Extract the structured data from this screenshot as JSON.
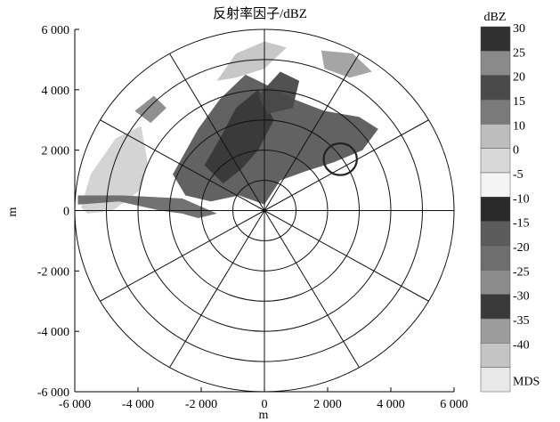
{
  "chart_data": {
    "type": "radar-ppi",
    "title": "反射率因子/dBZ",
    "xlabel": "m",
    "ylabel": "m",
    "xlim": [
      -6000,
      6000
    ],
    "ylim": [
      -6000,
      6000
    ],
    "xticks": [
      -6000,
      -4000,
      -2000,
      0,
      2000,
      4000,
      6000
    ],
    "yticks": [
      -6000,
      -4000,
      -2000,
      0,
      2000,
      4000,
      6000
    ],
    "xtick_labels": [
      "-6 000",
      "-4 000",
      "-2 000",
      "0",
      "2 000",
      "4 000",
      "6 000"
    ],
    "ytick_labels": [
      "-6 000",
      "-4 000",
      "-2 000",
      "0",
      "2 000",
      "4 000",
      "6 000"
    ],
    "range_rings_m": [
      1000,
      2000,
      3000,
      4000,
      5000,
      6000
    ],
    "azimuth_spokes_deg": [
      0,
      30,
      60,
      90,
      120,
      150,
      180,
      210,
      240,
      270,
      300,
      330
    ],
    "grid": true,
    "colorbar": {
      "title": "dBZ",
      "levels": [
        30,
        25,
        20,
        15,
        10,
        0,
        -5,
        -10,
        -15,
        -20,
        -25,
        -30,
        -35,
        -40,
        "MDS"
      ],
      "labels": [
        "30",
        "25",
        "20",
        "15",
        "10",
        "0",
        "-5",
        "-10",
        "-15",
        "-20",
        "-25",
        "-30",
        "-35",
        "-40",
        "MDS"
      ],
      "colors": [
        "#303030",
        "#8a8a8a",
        "#4a4a4a",
        "#7a7a7a",
        "#bdbdbd",
        "#d8d8d8",
        "#f3f3f3",
        "#2a2a2a",
        "#5c5c5c",
        "#6e6e6e",
        "#8c8c8c",
        "#3a3a3a",
        "#9c9c9c",
        "#c4c4c4",
        "#e8e8e8"
      ]
    },
    "annotation_circle": {
      "x": 2400,
      "y": 1700,
      "r": 1050
    },
    "echo_regions": [
      {
        "shade": "#d2d2d2",
        "points": [
          [
            -5800,
            100
          ],
          [
            -5500,
            1200
          ],
          [
            -4700,
            2400
          ],
          [
            -3900,
            2800
          ],
          [
            -3700,
            1600
          ],
          [
            -3900,
            700
          ],
          [
            -4800,
            0
          ],
          [
            -5600,
            -100
          ]
        ]
      },
      {
        "shade": "#6a6a6a",
        "points": [
          [
            -5900,
            200
          ],
          [
            -4600,
            300
          ],
          [
            -3300,
            0
          ],
          [
            -2600,
            -100
          ],
          [
            -2100,
            -250
          ],
          [
            -1500,
            -100
          ],
          [
            -2600,
            400
          ],
          [
            -4500,
            500
          ],
          [
            -5900,
            500
          ]
        ]
      },
      {
        "shade": "#5a5a5a",
        "points": [
          [
            -2900,
            1200
          ],
          [
            -2100,
            2700
          ],
          [
            -1400,
            3700
          ],
          [
            -600,
            4500
          ],
          [
            0,
            4200
          ],
          [
            900,
            3700
          ],
          [
            1900,
            3300
          ],
          [
            3000,
            3100
          ],
          [
            3600,
            2700
          ],
          [
            3100,
            2000
          ],
          [
            2200,
            1600
          ],
          [
            1300,
            1300
          ],
          [
            500,
            1000
          ],
          [
            0,
            200
          ],
          [
            -800,
            500
          ],
          [
            -1700,
            300
          ],
          [
            -2500,
            500
          ]
        ]
      },
      {
        "shade": "#383838",
        "points": [
          [
            -1900,
            1500
          ],
          [
            -1400,
            2400
          ],
          [
            -900,
            3400
          ],
          [
            -200,
            4000
          ],
          [
            300,
            3000
          ],
          [
            -200,
            2000
          ],
          [
            -700,
            1400
          ],
          [
            -1300,
            900
          ]
        ]
      },
      {
        "shade": "#484848",
        "points": [
          [
            -200,
            3800
          ],
          [
            500,
            4600
          ],
          [
            1100,
            4300
          ],
          [
            900,
            3400
          ],
          [
            100,
            3200
          ]
        ]
      },
      {
        "shade": "#c4c4c4",
        "points": [
          [
            -1500,
            4300
          ],
          [
            -900,
            5200
          ],
          [
            0,
            5600
          ],
          [
            700,
            5400
          ],
          [
            0,
            4700
          ],
          [
            -900,
            4400
          ]
        ]
      },
      {
        "shade": "#a0a0a0",
        "points": [
          [
            1800,
            5300
          ],
          [
            2800,
            5200
          ],
          [
            3400,
            4600
          ],
          [
            2700,
            4400
          ],
          [
            1900,
            4700
          ]
        ]
      },
      {
        "shade": "#8a8a8a",
        "points": [
          [
            -4100,
            3300
          ],
          [
            -3500,
            3800
          ],
          [
            -3100,
            3400
          ],
          [
            -3600,
            2900
          ]
        ]
      }
    ]
  }
}
